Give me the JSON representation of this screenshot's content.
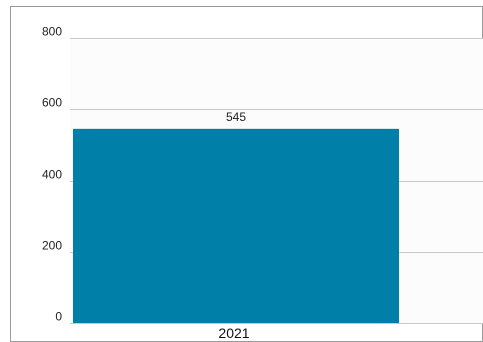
{
  "chart_data": {
    "type": "bar",
    "categories": [
      "2021"
    ],
    "values": [
      545
    ],
    "data_labels": [
      "545"
    ],
    "title": "",
    "xlabel": "",
    "ylabel": "",
    "ylim": [
      0,
      800
    ],
    "yticks": [
      0,
      200,
      400,
      600,
      800
    ],
    "ytick_labels": [
      "0",
      "200",
      "400",
      "600",
      "800"
    ],
    "grid": true,
    "legend": "none",
    "colors": {
      "bar": "#0080a8",
      "grid": "#c8c8c8",
      "plot_background": "#fcfcfc",
      "frame": "#9a9a9a"
    }
  }
}
